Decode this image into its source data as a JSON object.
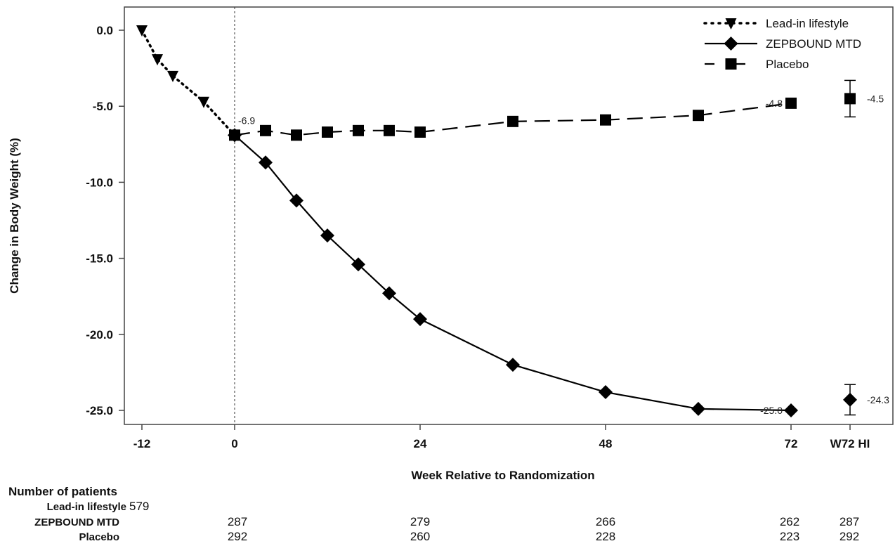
{
  "chart_data": {
    "type": "line",
    "xlabel": "Week Relative to Randomization",
    "ylabel": "Change in Body Weight (%)",
    "ylim": [
      -26.0,
      1.5
    ],
    "yticks": [
      "0.0",
      "-5.0",
      "-10.0",
      "-15.0",
      "-20.0",
      "-25.0"
    ],
    "xticks": [
      "-12",
      "0",
      "24",
      "48",
      "72",
      "W72 HI"
    ],
    "legend_position": "top-right",
    "series": [
      {
        "name": "Lead-in lifestyle",
        "line_style": "dotted",
        "marker": "triangle-down",
        "x": [
          -12,
          -10,
          -8,
          -4,
          0
        ],
        "y": [
          0.0,
          -1.9,
          -3.0,
          -4.7,
          -6.9
        ]
      },
      {
        "name": "ZEPBOUND MTD",
        "line_style": "solid",
        "marker": "diamond",
        "x": [
          0,
          4,
          8,
          12,
          16,
          20,
          24,
          36,
          48,
          60,
          72
        ],
        "y": [
          -6.9,
          -8.7,
          -11.2,
          -13.5,
          -15.4,
          -17.3,
          -19.0,
          -22.0,
          -23.8,
          -24.9,
          -25.0
        ],
        "end_value_label": "-25.0",
        "hi_value": -24.3,
        "hi_error": [
          -25.3,
          -23.3
        ],
        "hi_label": "-24.3"
      },
      {
        "name": "Placebo",
        "line_style": "dashed",
        "marker": "square",
        "x": [
          0,
          4,
          8,
          12,
          16,
          20,
          24,
          36,
          48,
          60,
          72
        ],
        "y": [
          -6.9,
          -6.6,
          -6.9,
          -6.7,
          -6.6,
          -6.6,
          -6.7,
          -6.0,
          -5.9,
          -5.6,
          -4.8
        ],
        "end_value_label": "-4.8",
        "hi_value": -4.5,
        "hi_error": [
          -5.7,
          -3.3
        ],
        "hi_label": "-4.5"
      }
    ],
    "start_label": "-6.9",
    "reference_line_x": 0,
    "colors": {
      "ink": "#000000",
      "axis": "#444444"
    }
  },
  "patients": {
    "title": "Number of patients",
    "lead_in": {
      "label": "Lead-in lifestyle",
      "value": "579"
    },
    "rows": [
      {
        "label": "ZEPBOUND MTD",
        "values": [
          "287",
          "279",
          "266",
          "262",
          "287"
        ]
      },
      {
        "label": "Placebo",
        "values": [
          "292",
          "260",
          "228",
          "223",
          "292"
        ]
      }
    ]
  }
}
